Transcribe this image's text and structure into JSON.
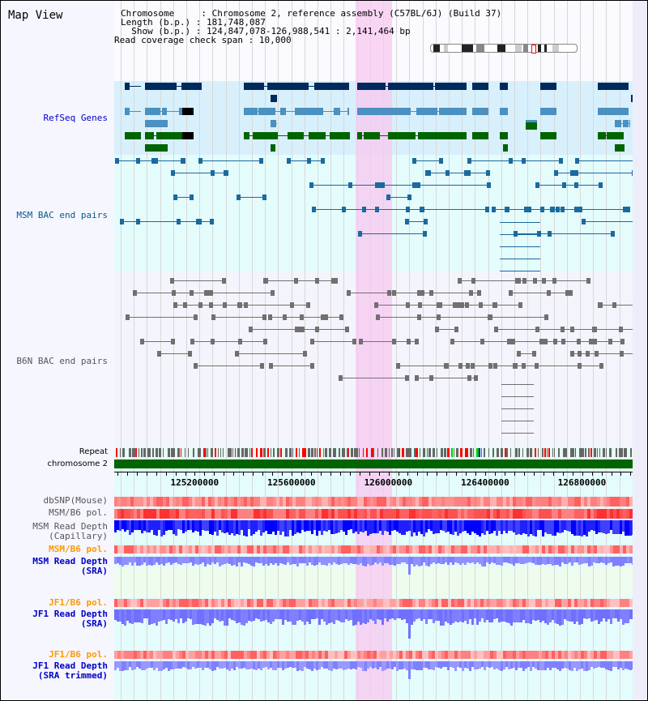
{
  "page_title": "Map View",
  "info": {
    "chromosome_label": "Chromosome    ",
    "chromosome": "Chromosome 2, reference assembly (C57BL/6J) (Build 37)",
    "length_label": "Length (b.p.)",
    "length": "181,748,087",
    "show_label": "  Show (b.p.)",
    "show": "124,847,078-126,988,541 : 2,141,464 bp",
    "coverage_label": "Read coverage check span",
    "coverage": "10,000"
  },
  "tracks": {
    "refseq": "RefSeq Genes",
    "msm_bac": "MSM BAC end pairs",
    "b6n_bac": "B6N BAC end pairs",
    "repeat": "Repeat",
    "chromosome": "chromosome 2",
    "dbsnp": "dbSNP(Mouse)",
    "msm_pol": "MSM/B6 pol.",
    "msm_depth_cap_1": "MSM Read Depth",
    "msm_depth_cap_2": "(Capillary)",
    "msm_pol_sra": "MSM/B6 pol.",
    "msm_depth_sra_1": "MSM Read Depth",
    "msm_depth_sra_2": "(SRA)",
    "jf1_pol": "JF1/B6 pol.",
    "jf1_depth_1": "JF1 Read Depth",
    "jf1_depth_2": "(SRA)",
    "jf1_pol_trim": "JF1/B6 pol.",
    "jf1_depth_trim_1": "JF1 Read Depth",
    "jf1_depth_trim_2": "(SRA trimmed)"
  },
  "ruler": {
    "ticks": [
      "125200000",
      "125600000",
      "126000000",
      "126400000",
      "126800000"
    ],
    "start_bp": 124847078,
    "end_bp": 126988541
  },
  "highlight_bp": [
    125844000,
    125994000
  ],
  "colors": {
    "refseq_dark": "#002a5c",
    "refseq_mid": "#4a90c0",
    "refseq_green": "#006400",
    "bac_msm": "#1a6aa0",
    "bac_b6n": "#707070",
    "chrom": "#006400",
    "depth": "#0000ff",
    "depth_sra": "#8080ff",
    "highlight": "#f8d8f4"
  }
}
